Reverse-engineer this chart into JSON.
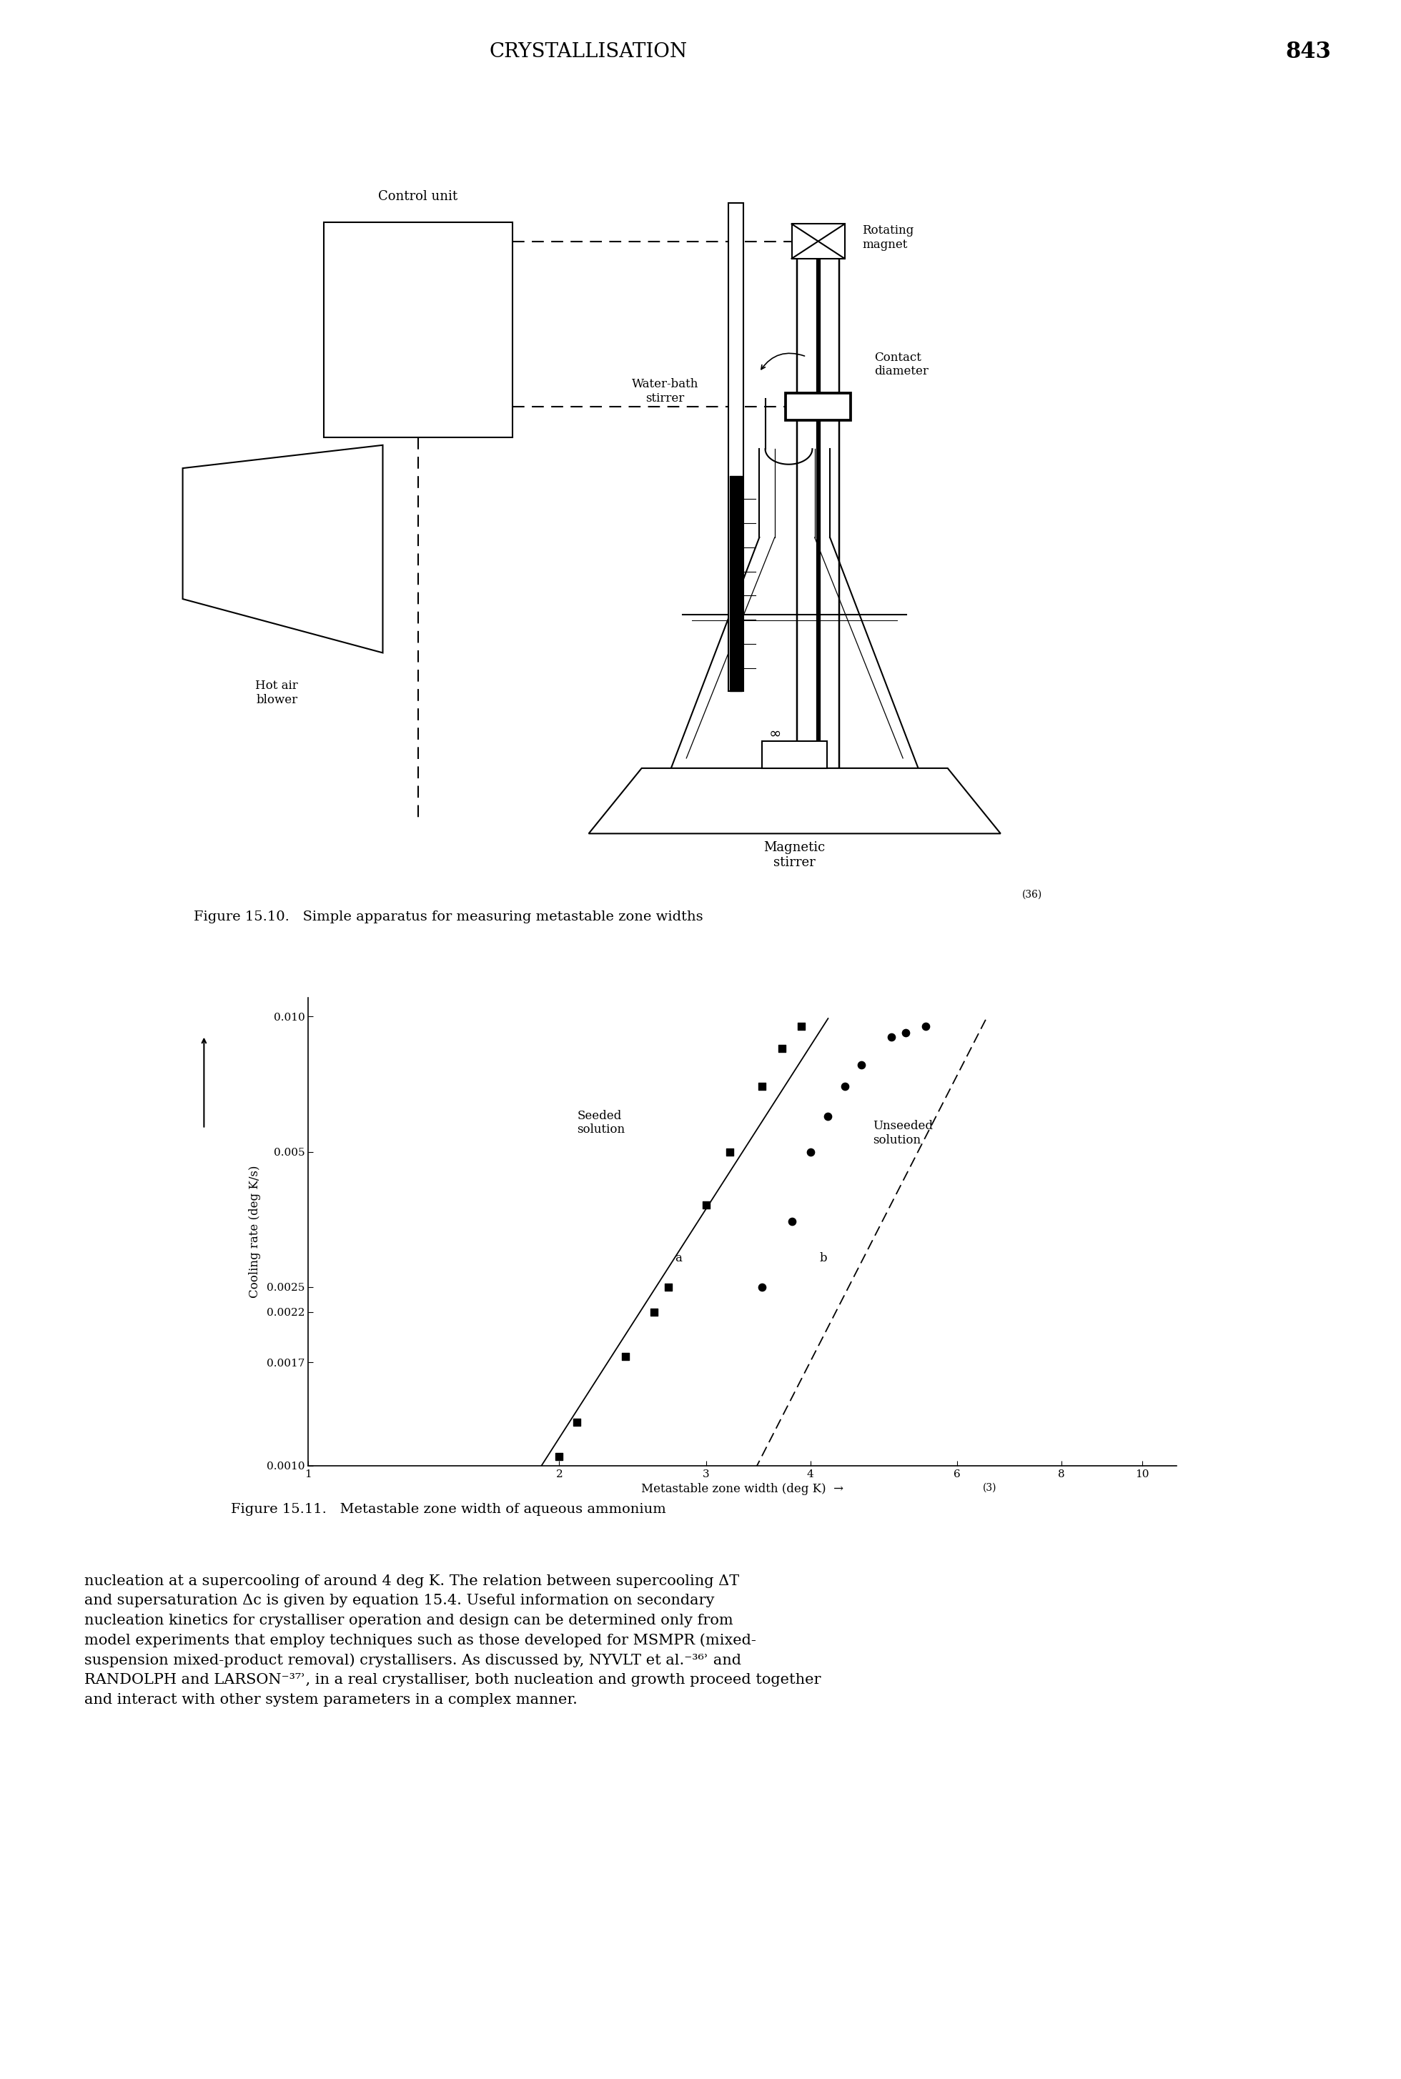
{
  "page_header": "CRYSTALLISATION",
  "page_number": "843",
  "fig1_caption": "Figure 15.10.   Simple apparatus for measuring metastable zone widths",
  "fig1_caption_sup": "(36)",
  "fig2_caption": "Figure 15.11.   Metastable zone width of aqueous ammonium",
  "fig2_caption_sup": "(3)",
  "seeded_x": [
    2.0,
    2.1,
    2.4,
    2.6,
    2.7,
    3.0,
    3.2,
    3.5,
    3.7,
    3.9
  ],
  "seeded_y": [
    0.00105,
    0.00125,
    0.00175,
    0.0022,
    0.0025,
    0.0038,
    0.005,
    0.007,
    0.0085,
    0.0095
  ],
  "unseeded_x": [
    3.5,
    3.8,
    4.0,
    4.2,
    4.4,
    4.6,
    5.0,
    5.2,
    5.5
  ],
  "unseeded_y": [
    0.0025,
    0.0035,
    0.005,
    0.006,
    0.007,
    0.0078,
    0.009,
    0.0092,
    0.0095
  ],
  "seeded_line_x": [
    1.8,
    4.2
  ],
  "seeded_line_y": [
    0.00085,
    0.0099
  ],
  "unseeded_line_x": [
    3.3,
    6.5
  ],
  "unseeded_line_y": [
    0.00085,
    0.0099
  ],
  "xlabel": "Metastable zone width (deg K)",
  "ylabel": "Cooling rate (deg K/s)",
  "ytick_vals": [
    0.001,
    0.0017,
    0.0022,
    0.0025,
    0.005,
    0.01
  ],
  "ytick_labels": [
    "0.0010",
    "0.0017",
    "0.0022",
    "0.0025",
    "0.005",
    "0.010"
  ],
  "xtick_vals": [
    1,
    2,
    3,
    4,
    6,
    8,
    10
  ],
  "xtick_labels": [
    "1",
    "2",
    "3",
    "4",
    "6",
    "8",
    "10"
  ],
  "xlim": [
    1,
    11
  ],
  "ylim": [
    0.001,
    0.011
  ],
  "background": "#ffffff"
}
